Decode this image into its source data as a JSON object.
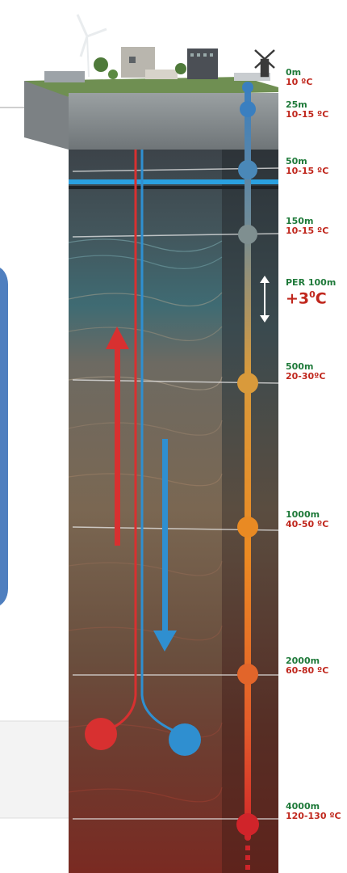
{
  "depth_markers": [
    {
      "depth": "0m",
      "temp": "10 ºC",
      "color": "#3a7fc0"
    },
    {
      "depth": "25m",
      "temp": "10-15 ºC",
      "color": "#3a7fc0"
    },
    {
      "depth": "50m",
      "temp": "10-15 ºC",
      "color": "#4a88b8"
    },
    {
      "depth": "150m",
      "temp": "10-15 ºC",
      "color": "#7f8f90"
    },
    {
      "depth": "500m",
      "temp": "20-30ºC",
      "color": "#d99a3b"
    },
    {
      "depth": "1000m",
      "temp": "40-50 ºC",
      "color": "#e98a23"
    },
    {
      "depth": "2000m",
      "temp": "60-80 ºC",
      "color": "#e2652a"
    },
    {
      "depth": "4000m",
      "temp": "120-130 ºC",
      "color": "#d0242a"
    }
  ],
  "gradient": {
    "label": "PER 100m",
    "value": "+3",
    "unit": "C",
    "degree": "0"
  },
  "colors": {
    "cold_pipe": "#2f8fd0",
    "hot_pipe": "#d83030",
    "panel": "#4f7fbf"
  }
}
